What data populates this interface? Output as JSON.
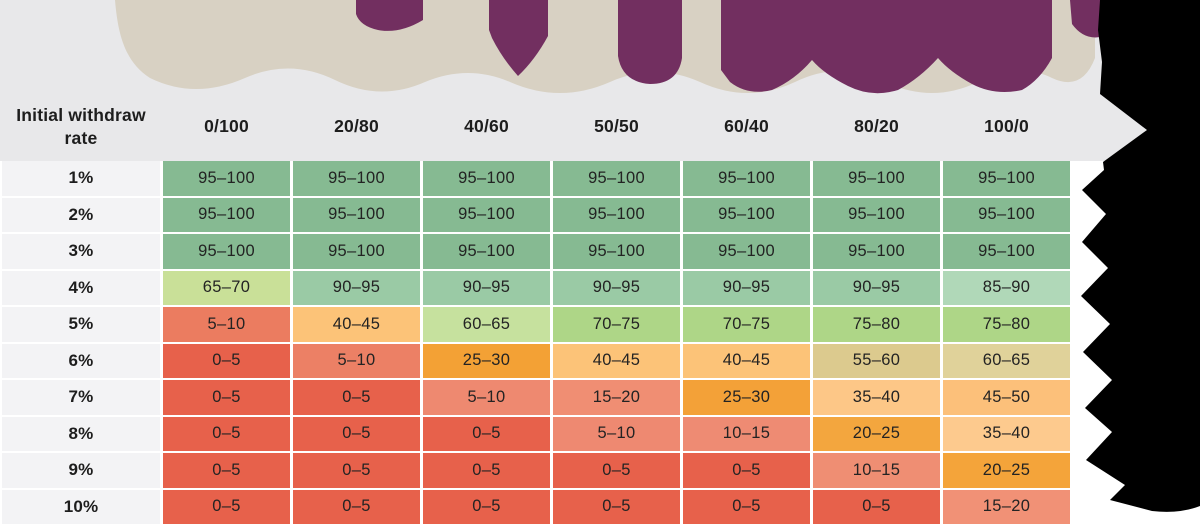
{
  "chart_data": {
    "type": "heatmap",
    "row_axis_label": "Initial withdraw rate",
    "columns": [
      "0/100",
      "20/80",
      "40/60",
      "50/50",
      "60/40",
      "80/20",
      "100/0"
    ],
    "rows": [
      "1%",
      "2%",
      "3%",
      "4%",
      "5%",
      "6%",
      "7%",
      "8%",
      "9%",
      "10%"
    ],
    "values": [
      [
        "95–100",
        "95–100",
        "95–100",
        "95–100",
        "95–100",
        "95–100",
        "95–100"
      ],
      [
        "95–100",
        "95–100",
        "95–100",
        "95–100",
        "95–100",
        "95–100",
        "95–100"
      ],
      [
        "95–100",
        "95–100",
        "95–100",
        "95–100",
        "95–100",
        "95–100",
        "95–100"
      ],
      [
        "65–70",
        "90–95",
        "90–95",
        "90–95",
        "90–95",
        "90–95",
        "85–90"
      ],
      [
        "5–10",
        "40–45",
        "60–65",
        "70–75",
        "70–75",
        "75–80",
        "75–80"
      ],
      [
        "0–5",
        "5–10",
        "25–30",
        "40–45",
        "40–45",
        "55–60",
        "60–65"
      ],
      [
        "0–5",
        "0–5",
        "5–10",
        "15–20",
        "25–30",
        "35–40",
        "45–50"
      ],
      [
        "0–5",
        "0–5",
        "0–5",
        "5–10",
        "10–15",
        "20–25",
        "35–40"
      ],
      [
        "0–5",
        "0–5",
        "0–5",
        "0–5",
        "0–5",
        "10–15",
        "20–25"
      ],
      [
        "0–5",
        "0–5",
        "0–5",
        "0–5",
        "0–5",
        "0–5",
        "15–20"
      ]
    ],
    "cell_colors": [
      [
        "#86ba92",
        "#86ba92",
        "#86ba92",
        "#86ba92",
        "#86ba92",
        "#86ba92",
        "#86ba92"
      ],
      [
        "#86ba92",
        "#86ba92",
        "#86ba92",
        "#86ba92",
        "#86ba92",
        "#86ba92",
        "#86ba92"
      ],
      [
        "#86ba92",
        "#86ba92",
        "#86ba92",
        "#86ba92",
        "#86ba92",
        "#86ba92",
        "#86ba92"
      ],
      [
        "#c9e098",
        "#9acaa5",
        "#9acaa5",
        "#9acaa5",
        "#9acaa5",
        "#9acaa5",
        "#b0d8b8"
      ],
      [
        "#eb7c60",
        "#fcc378",
        "#c6e19e",
        "#aed687",
        "#aed687",
        "#aed687",
        "#aed687"
      ],
      [
        "#e7614b",
        "#ec8065",
        "#f3a135",
        "#fcc378",
        "#fcc378",
        "#dcca8e",
        "#e0d29a"
      ],
      [
        "#e7614b",
        "#e7614b",
        "#ee8970",
        "#f08e73",
        "#f3a138",
        "#fdc787",
        "#fcc07a"
      ],
      [
        "#e7614b",
        "#e7614b",
        "#e7614b",
        "#ee8971",
        "#ee8b73",
        "#f3a63e",
        "#fdca8e"
      ],
      [
        "#e7614b",
        "#e7614b",
        "#e7614b",
        "#e7614b",
        "#e7614b",
        "#ef8e73",
        "#f4a43a"
      ],
      [
        "#e7614b",
        "#e7614b",
        "#e7614b",
        "#e7614b",
        "#e7614b",
        "#e7614b",
        "#f19176"
      ]
    ],
    "legend_position": "none",
    "grid": "off"
  },
  "colors": {
    "background_gray": "#e8e8ea",
    "paper_beige": "#d8d1c3",
    "accent_purple": "#722f60",
    "torn_black": "#000000",
    "label_cell_bg": "#f3f3f5",
    "header_text": "#1d1d1d",
    "cell_text": "#232323",
    "page_white": "#ffffff"
  }
}
